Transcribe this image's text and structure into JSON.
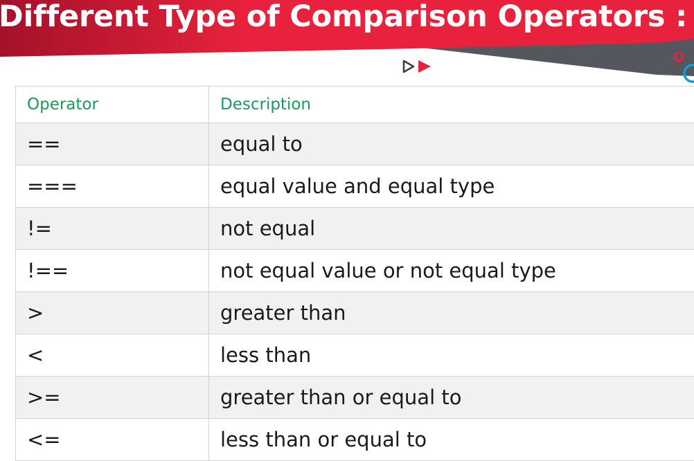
{
  "slide": {
    "title": "Different Type of Comparison Operators :"
  },
  "decor": {
    "banner_color": "#e8213c",
    "banner_dark": "#a3122a",
    "gray_stripe": "#54575e",
    "logo_outline_color": "#3b3f4a",
    "logo_fill_color": "#e8213c",
    "circle_red": "#e8213c",
    "circle_blue": "#0a9fd8",
    "logo_icon": "play-arrows-icon",
    "circles_icon": "decorative-circles-icon"
  },
  "table": {
    "headers": [
      "Operator",
      "Description"
    ],
    "rows": [
      {
        "operator": "==",
        "description": "equal to"
      },
      {
        "operator": "===",
        "description": "equal value and equal type"
      },
      {
        "operator": "!=",
        "description": "not equal"
      },
      {
        "operator": "!==",
        "description": "not equal value or not equal type"
      },
      {
        "operator": ">",
        "description": "greater than"
      },
      {
        "operator": "<",
        "description": "less than"
      },
      {
        "operator": ">=",
        "description": "greater than or equal to"
      },
      {
        "operator": "<=",
        "description": "less than or equal to"
      }
    ],
    "header_color": "#1a9a5b",
    "stripe_color": "#f1f1f1"
  }
}
